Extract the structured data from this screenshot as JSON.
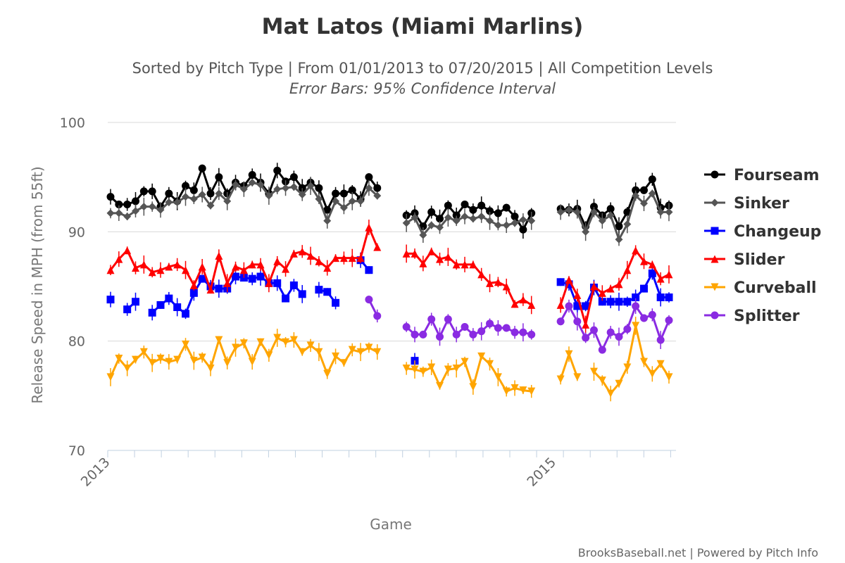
{
  "chart_data": {
    "type": "line",
    "title": "Mat Latos (Miami Marlins)",
    "subtitle": "Sorted by Pitch Type | From 01/01/2013 to 07/20/2015 | All Competition Levels",
    "note": "Error Bars: 95% Confidence Interval",
    "xlabel": "Game",
    "ylabel": "Release Speed in MPH (from 55ft)",
    "ylim": [
      70,
      100
    ],
    "yticks": [
      70,
      80,
      90,
      100
    ],
    "x_range": [
      1,
      106
    ],
    "x_gap_after": [
      53,
      85
    ],
    "x_tick_labels": [
      {
        "x": 1,
        "label": "2013"
      },
      {
        "x": 85,
        "label": "2015"
      }
    ],
    "grid": true,
    "legend_position": "right",
    "credit": "BrooksBaseball.net | Powered by Pitch Info",
    "series": [
      {
        "name": "Fourseam",
        "color": "#000000",
        "marker": "circle",
        "values": [
          93.2,
          92.5,
          92.5,
          92.8,
          93.7,
          93.7,
          92.3,
          93.5,
          92.8,
          94.2,
          93.8,
          95.8,
          93.5,
          95.0,
          93.5,
          94.5,
          94.2,
          95.2,
          94.5,
          93.5,
          95.6,
          94.6,
          95.0,
          94.0,
          94.5,
          94.0,
          92.0,
          93.5,
          93.5,
          93.8,
          93.0,
          95.0,
          94.0,
          null,
          91.5,
          91.7,
          90.5,
          91.8,
          91.2,
          92.4,
          91.5,
          92.5,
          92.0,
          92.4,
          91.9,
          91.7,
          92.2,
          91.4,
          90.2,
          91.7,
          null,
          92.1,
          92.0,
          92.1,
          90.5,
          92.3,
          91.5,
          92.1,
          90.5,
          91.8,
          93.8,
          93.8,
          94.8,
          92.2,
          92.4
        ]
      },
      {
        "name": "Sinker",
        "color": "#555555",
        "marker": "diamond",
        "values": [
          91.7,
          91.7,
          91.4,
          91.9,
          92.3,
          92.3,
          92.0,
          92.7,
          92.7,
          93.2,
          93.0,
          93.4,
          92.4,
          93.5,
          92.8,
          94.3,
          93.9,
          94.5,
          94.3,
          93.3,
          93.9,
          94.0,
          94.1,
          93.4,
          94.2,
          93.0,
          91.0,
          92.8,
          92.2,
          92.8,
          92.8,
          94.0,
          93.3,
          null,
          90.8,
          91.3,
          89.7,
          90.6,
          90.4,
          91.3,
          91.0,
          91.4,
          91.2,
          91.4,
          91.0,
          90.6,
          90.6,
          90.8,
          91.1,
          91.0,
          null,
          91.8,
          92.0,
          91.8,
          90.0,
          91.8,
          91.0,
          91.5,
          89.3,
          90.7,
          93.3,
          92.6,
          93.5,
          91.8,
          91.8
        ]
      },
      {
        "name": "Changeup",
        "color": "#0000ff",
        "marker": "square",
        "values": [
          83.8,
          null,
          82.9,
          83.6,
          null,
          82.6,
          83.3,
          83.9,
          83.1,
          82.5,
          84.4,
          85.7,
          85.0,
          84.8,
          84.8,
          85.9,
          85.8,
          85.7,
          85.9,
          85.3,
          85.3,
          83.9,
          85.1,
          84.3,
          null,
          84.7,
          84.5,
          83.5,
          null,
          null,
          87.4,
          86.5,
          null,
          null,
          null,
          78.2,
          null,
          null,
          null,
          null,
          null,
          null,
          null,
          null,
          null,
          null,
          null,
          null,
          null,
          null,
          null,
          85.4,
          85.2,
          83.2,
          83.2,
          84.9,
          83.6,
          83.6,
          83.6,
          83.6,
          84.0,
          84.8,
          86.2,
          84.0,
          84.0
        ]
      },
      {
        "name": "Slider",
        "color": "#ff0000",
        "marker": "triangle-up",
        "values": [
          86.5,
          87.5,
          88.3,
          86.7,
          87.0,
          86.3,
          86.5,
          86.8,
          87.0,
          86.5,
          85.1,
          86.8,
          84.7,
          87.8,
          85.3,
          86.8,
          86.5,
          87.0,
          87.0,
          85.3,
          87.3,
          86.6,
          88.0,
          88.2,
          87.8,
          87.3,
          86.7,
          87.6,
          87.6,
          87.6,
          87.6,
          90.4,
          88.6,
          null,
          88.0,
          88.0,
          87.1,
          88.2,
          87.5,
          87.7,
          87.0,
          87.0,
          87.0,
          86.1,
          85.3,
          85.4,
          85.0,
          83.4,
          83.8,
          83.3,
          null,
          83.3,
          85.6,
          84.2,
          81.5,
          85.0,
          84.4,
          84.8,
          85.2,
          86.5,
          88.3,
          87.3,
          87.0,
          85.7,
          86.1
        ]
      },
      {
        "name": "Curveball",
        "color": "#ffa500",
        "marker": "triangle-down",
        "values": [
          76.7,
          78.4,
          77.5,
          78.3,
          79.0,
          78.0,
          78.4,
          78.1,
          78.3,
          79.7,
          78.2,
          78.5,
          77.5,
          80.1,
          78.0,
          79.4,
          79.8,
          78.1,
          79.9,
          78.7,
          80.3,
          79.9,
          80.1,
          79.0,
          79.6,
          79.0,
          77.0,
          78.6,
          78.0,
          79.2,
          79.0,
          79.4,
          79.0,
          null,
          77.5,
          77.4,
          77.2,
          77.6,
          75.9,
          77.4,
          77.5,
          78.1,
          75.8,
          78.6,
          77.9,
          76.7,
          75.4,
          75.7,
          75.5,
          75.4,
          null,
          76.5,
          78.8,
          76.7,
          null,
          77.2,
          76.4,
          75.2,
          76.1,
          77.6,
          81.4,
          78.1,
          77.0,
          77.9,
          76.7
        ]
      },
      {
        "name": "Splitter",
        "color": "#8a2be2",
        "marker": "circle",
        "values": [
          null,
          null,
          null,
          null,
          null,
          null,
          null,
          null,
          null,
          null,
          null,
          null,
          null,
          null,
          null,
          null,
          null,
          null,
          null,
          null,
          null,
          null,
          null,
          null,
          null,
          null,
          null,
          null,
          null,
          null,
          null,
          83.8,
          82.3,
          null,
          81.3,
          80.6,
          80.6,
          82.0,
          80.4,
          82.0,
          80.6,
          81.3,
          80.6,
          80.9,
          81.6,
          81.2,
          81.2,
          80.8,
          80.8,
          80.6,
          null,
          81.8,
          83.2,
          81.8,
          80.3,
          81.0,
          79.2,
          80.8,
          80.4,
          81.1,
          83.2,
          82.1,
          82.4,
          80.1,
          81.9
        ]
      }
    ]
  }
}
